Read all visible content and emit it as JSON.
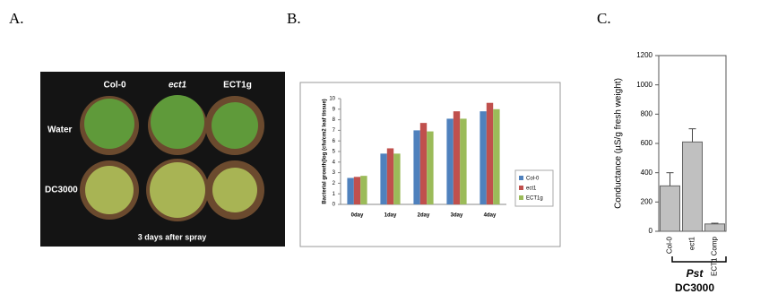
{
  "panel_labels": [
    "A.",
    "B.",
    "C."
  ],
  "photo": {
    "column_labels": [
      "Col-0",
      "ect1",
      "ECT1g"
    ],
    "row_labels": [
      "Water",
      "DC3000"
    ],
    "caption": "3 days after spray"
  },
  "chart_data": [
    {
      "type": "grouped_bar",
      "ylabel": "Bacterial growth(log (cfu/cm2 leaf tissue)",
      "categories": [
        "0day",
        "1day",
        "2day",
        "3day",
        "4day"
      ],
      "series": [
        {
          "name": "Col-0",
          "color": "#4f81bd",
          "values": [
            2.5,
            4.8,
            7.0,
            8.1,
            8.8
          ]
        },
        {
          "name": "ect1",
          "color": "#c0504d",
          "values": [
            2.6,
            5.3,
            7.7,
            8.8,
            9.6
          ]
        },
        {
          "name": "ECT1g",
          "color": "#9bbb59",
          "values": [
            2.7,
            4.8,
            6.9,
            8.1,
            9.0
          ]
        }
      ],
      "ylim": [
        0,
        10
      ],
      "yticks": [
        0,
        1,
        2,
        3,
        4,
        5,
        6,
        7,
        8,
        9,
        10
      ],
      "legend": "right"
    },
    {
      "type": "error_bar",
      "ylabel": "Conductance (µS/g fresh weight)",
      "categories": [
        "Col-0",
        "ect1",
        "ECT1 Comp"
      ],
      "color": "#c0c0c0",
      "values": [
        310,
        610,
        50
      ],
      "errors": [
        90,
        90,
        5
      ],
      "ylim": [
        0,
        1200
      ],
      "yticks": [
        0,
        200,
        400,
        600,
        800,
        1000,
        1200
      ],
      "group_label": [
        "Pst",
        "DC3000"
      ]
    }
  ]
}
